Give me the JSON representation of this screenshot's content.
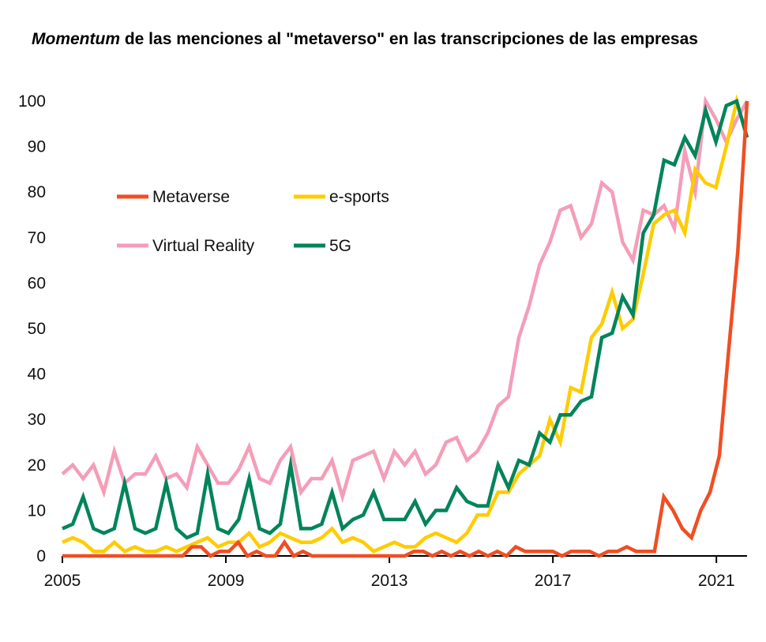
{
  "chart_data": {
    "type": "line",
    "title_emphasis": "Momentum",
    "title_rest": " de las menciones al \"metaverso\" en las transcripciones de las empresas",
    "xlabel": "",
    "ylabel": "",
    "ylim": [
      0,
      100
    ],
    "xlim": [
      2005,
      2021.75
    ],
    "x_ticks": [
      2005,
      2009,
      2013,
      2017,
      2021
    ],
    "y_ticks": [
      0,
      10,
      20,
      30,
      40,
      50,
      60,
      70,
      80,
      90,
      100
    ],
    "legend_position": "upper-left",
    "x_start": 2005,
    "x_step": 0.25,
    "series": [
      {
        "name": "Metaverse",
        "color": "#F04E23",
        "values": [
          0,
          0,
          0,
          0,
          0,
          0,
          0,
          0,
          0,
          0,
          0,
          0,
          0,
          0,
          2,
          2,
          0,
          1,
          1,
          3,
          0,
          1,
          0,
          0,
          3,
          0,
          1,
          0,
          0,
          0,
          0,
          0,
          0,
          0,
          0,
          0,
          0,
          0,
          1,
          1,
          0,
          1,
          0,
          1,
          0,
          1,
          0,
          1,
          0,
          2,
          1,
          1,
          1,
          1,
          0,
          1,
          1,
          1,
          0,
          1,
          1,
          2,
          1,
          1,
          1,
          13,
          10,
          6,
          4,
          10,
          14,
          22,
          45,
          67,
          100
        ]
      },
      {
        "name": "e-sports",
        "color": "#FFCC00",
        "values": [
          3,
          4,
          3,
          1,
          1,
          3,
          1,
          2,
          1,
          1,
          2,
          1,
          2,
          3,
          4,
          2,
          3,
          3,
          5,
          2,
          3,
          5,
          4,
          3,
          3,
          4,
          6,
          3,
          4,
          3,
          1,
          2,
          3,
          2,
          2,
          4,
          5,
          4,
          3,
          5,
          9,
          9,
          14,
          14,
          18,
          20,
          22,
          30,
          25,
          37,
          36,
          48,
          51,
          58,
          50,
          52,
          62,
          73,
          75,
          76,
          71,
          85,
          82,
          81,
          90,
          100,
          92
        ]
      },
      {
        "name": "Virtual Reality",
        "color": "#F59DB8",
        "values": [
          18,
          20,
          17,
          20,
          14,
          23,
          16,
          18,
          18,
          22,
          17,
          18,
          15,
          24,
          20,
          16,
          16,
          19,
          24,
          17,
          16,
          21,
          24,
          14,
          17,
          17,
          21,
          13,
          21,
          22,
          23,
          17,
          23,
          20,
          23,
          18,
          20,
          25,
          26,
          21,
          23,
          27,
          33,
          35,
          48,
          55,
          64,
          69,
          76,
          77,
          70,
          73,
          82,
          80,
          69,
          65,
          76,
          75,
          77,
          72,
          89,
          80,
          100,
          96,
          91,
          96,
          100
        ]
      },
      {
        "name": "5G",
        "color": "#00845A",
        "values": [
          6,
          7,
          13,
          6,
          5,
          6,
          16,
          6,
          5,
          6,
          16,
          6,
          4,
          5,
          18,
          6,
          5,
          8,
          17,
          6,
          5,
          7,
          20,
          6,
          6,
          7,
          14,
          6,
          8,
          9,
          14,
          8,
          8,
          8,
          12,
          7,
          10,
          10,
          15,
          12,
          11,
          11,
          20,
          15,
          21,
          20,
          27,
          25,
          31,
          31,
          34,
          35,
          48,
          49,
          57,
          53,
          71,
          75,
          87,
          86,
          92,
          88,
          98,
          91,
          99,
          100,
          92
        ]
      }
    ]
  }
}
